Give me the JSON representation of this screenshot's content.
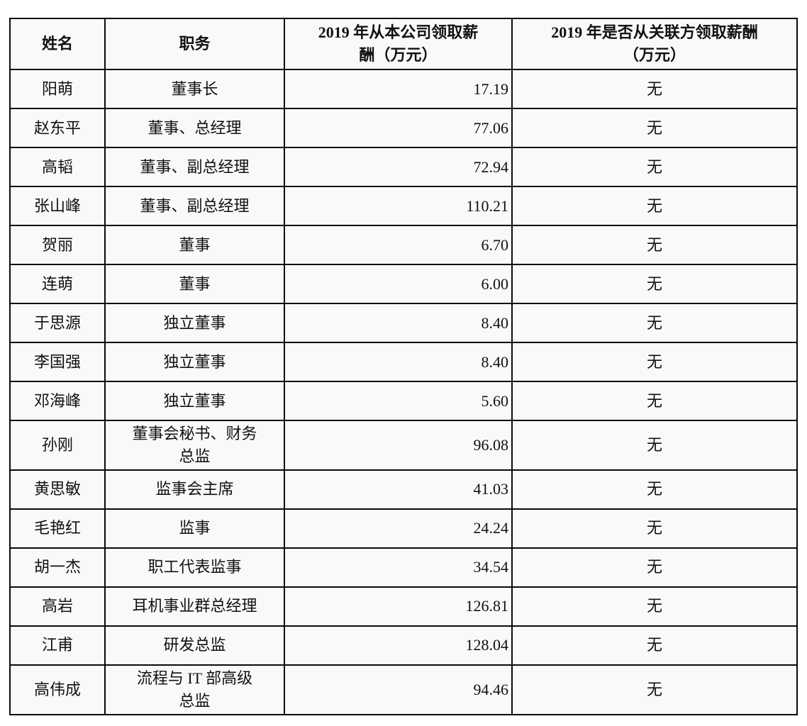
{
  "page": {
    "background_color": "#ffffff",
    "cell_background_color": "#f9f9fa",
    "border_color": "#0a0a0a"
  },
  "table": {
    "columns": [
      {
        "key": "name",
        "label": "姓名"
      },
      {
        "key": "title",
        "label": "职务"
      },
      {
        "key": "salary",
        "label": "2019 年从本公司领取薪\n酬（万元）"
      },
      {
        "key": "related",
        "label": "2019 年是否从关联方领取薪酬\n（万元）"
      }
    ],
    "rows": [
      {
        "name": "阳萌",
        "title": "董事长",
        "salary": "17.19",
        "related": "无"
      },
      {
        "name": "赵东平",
        "title": "董事、总经理",
        "salary": "77.06",
        "related": "无"
      },
      {
        "name": "高韬",
        "title": "董事、副总经理",
        "salary": "72.94",
        "related": "无"
      },
      {
        "name": "张山峰",
        "title": "董事、副总经理",
        "salary": "110.21",
        "related": "无"
      },
      {
        "name": "贺丽",
        "title": "董事",
        "salary": "6.70",
        "related": "无"
      },
      {
        "name": "连萌",
        "title": "董事",
        "salary": "6.00",
        "related": "无"
      },
      {
        "name": "于思源",
        "title": "独立董事",
        "salary": "8.40",
        "related": "无"
      },
      {
        "name": "李国强",
        "title": "独立董事",
        "salary": "8.40",
        "related": "无"
      },
      {
        "name": "邓海峰",
        "title": "独立董事",
        "salary": "5.60",
        "related": "无"
      },
      {
        "name": "孙刚",
        "title": "董事会秘书、财务\n总监",
        "salary": "96.08",
        "related": "无"
      },
      {
        "name": "黄思敏",
        "title": "监事会主席",
        "salary": "41.03",
        "related": "无"
      },
      {
        "name": "毛艳红",
        "title": "监事",
        "salary": "24.24",
        "related": "无"
      },
      {
        "name": "胡一杰",
        "title": "职工代表监事",
        "salary": "34.54",
        "related": "无"
      },
      {
        "name": "高岩",
        "title": "耳机事业群总经理",
        "salary": "126.81",
        "related": "无"
      },
      {
        "name": "江甫",
        "title": "研发总监",
        "salary": "128.04",
        "related": "无"
      },
      {
        "name": "高伟成",
        "title": "流程与 IT 部高级\n总监",
        "salary": "94.46",
        "related": "无"
      }
    ]
  }
}
